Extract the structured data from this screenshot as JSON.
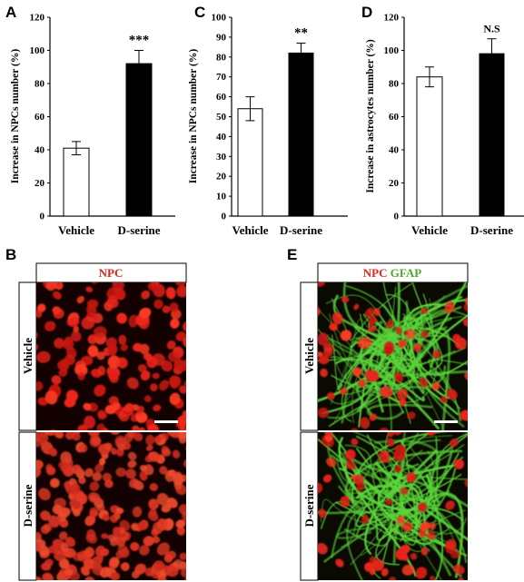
{
  "panels": {
    "A": {
      "letter": "A"
    },
    "B": {
      "letter": "B"
    },
    "C": {
      "letter": "C"
    },
    "D": {
      "letter": "D"
    },
    "E": {
      "letter": "E"
    }
  },
  "colors": {
    "vehicle_bar": "#ffffff",
    "dserine_bar": "#000000",
    "npc_red": "#e8201a",
    "gfap_green": "#5ad63a",
    "micrograph_bg": "#140202"
  },
  "chart_data": [
    {
      "id": "A",
      "type": "bar",
      "categories": [
        "Vehicle",
        "D-serine"
      ],
      "values": [
        41,
        92
      ],
      "errors": [
        4,
        8
      ],
      "significance": "***",
      "ylabel": "Increase in NPCs number (%)",
      "ylim": [
        0,
        120
      ],
      "yticks": [
        0,
        20,
        40,
        60,
        80,
        100,
        120
      ],
      "grid": false
    },
    {
      "id": "C",
      "type": "bar",
      "categories": [
        "Vehicle",
        "D-serine"
      ],
      "values": [
        54,
        82
      ],
      "errors": [
        6,
        5
      ],
      "significance": "**",
      "ylabel": "Increase in NPCs number (%)",
      "ylim": [
        0,
        100
      ],
      "yticks": [
        0,
        10,
        20,
        30,
        40,
        50,
        60,
        70,
        80,
        90,
        100
      ],
      "grid": false
    },
    {
      "id": "D",
      "type": "bar",
      "categories": [
        "Vehicle",
        "D-serine"
      ],
      "values": [
        84,
        98
      ],
      "errors": [
        6,
        9
      ],
      "significance": "N.S",
      "ylabel": "Increase in astrocytes  number (%)",
      "ylim": [
        0,
        120
      ],
      "yticks": [
        0,
        20,
        40,
        60,
        80,
        100,
        120
      ],
      "grid": false
    }
  ],
  "micrographs": {
    "B": {
      "header": "NPC",
      "rows": [
        "Vehicle",
        "D-serine"
      ],
      "stain": "npc"
    },
    "E": {
      "header_npc": "NPC",
      "header_gfap": "GFAP",
      "rows": [
        "Vehicle",
        "D-serine"
      ],
      "stain": "npc_gfap"
    }
  }
}
